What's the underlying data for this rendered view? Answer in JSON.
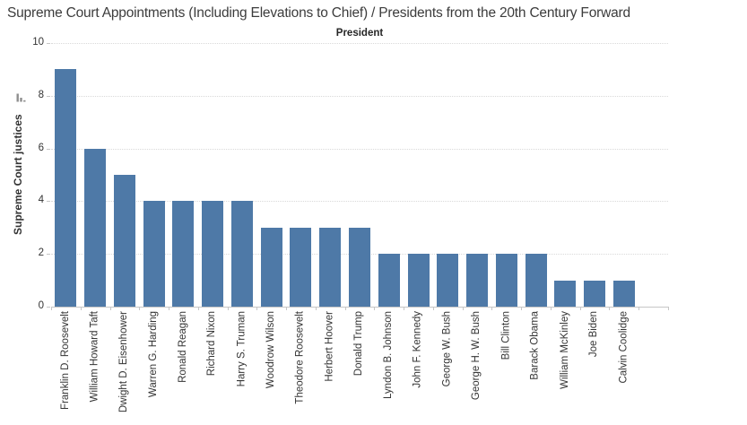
{
  "chart_data": {
    "type": "bar",
    "title": "Supreme Court Appointments (Including Elevations to Chief) / Presidents from the 20th Century Forward",
    "column_header": "President",
    "xlabel": "President",
    "ylabel": "Supreme Court justices",
    "categories": [
      "Franklin D. Roosevelt",
      "William Howard Taft",
      "Dwight D. Eisenhower",
      "Warren G. Harding",
      "Ronald Reagan",
      "Richard Nixon",
      "Harry S. Truman",
      "Woodrow Wilson",
      "Theodore Roosevelt",
      "Herbert Hoover",
      "Donald Trump",
      "Lyndon B. Johnson",
      "John F. Kennedy",
      "George W. Bush",
      "George H. W. Bush",
      "Bill Clinton",
      "Barack Obama",
      "William McKinley",
      "Joe Biden",
      "Calvin Coolidge"
    ],
    "values": [
      9,
      6,
      5,
      4,
      4,
      4,
      4,
      3,
      3,
      3,
      3,
      2,
      2,
      2,
      2,
      2,
      2,
      1,
      1,
      1
    ],
    "ylim": [
      0,
      10
    ],
    "yticks": [
      0,
      2,
      4,
      6,
      8,
      10
    ],
    "bar_color": "#4e79a7",
    "grid": true,
    "legend": "none",
    "sort_order": "descending",
    "colors": {
      "grid_line": "#d9d9d9",
      "axis_line": "#c6c6c6",
      "text": "#333333",
      "sort_icon": "#8f8f8f"
    }
  }
}
